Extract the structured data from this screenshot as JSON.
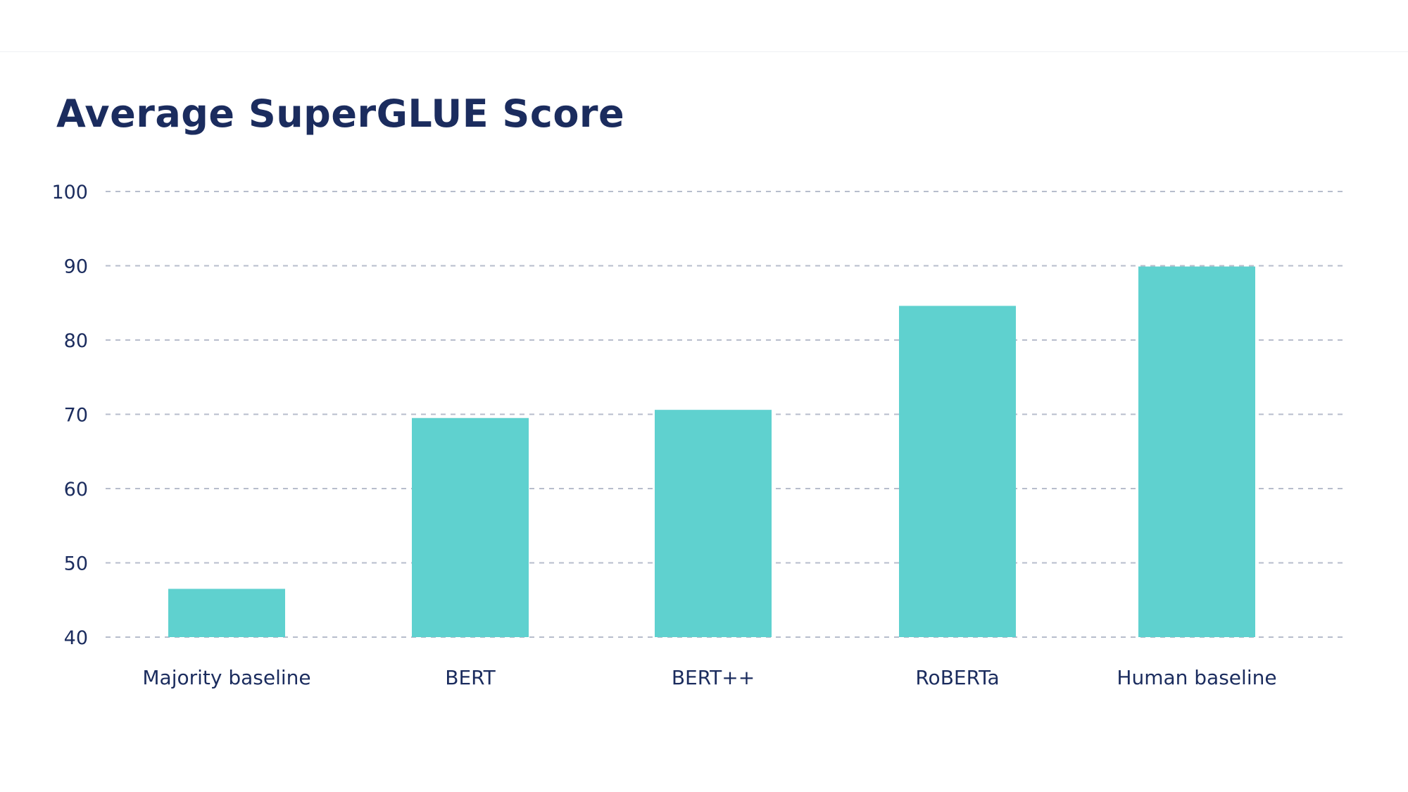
{
  "colors": {
    "bar": "#5fd1cf",
    "text": "#1b2c5e",
    "grid": "#b7bdcc"
  },
  "chart_data": {
    "type": "bar",
    "title": "Average SuperGLUE Score",
    "xlabel": "",
    "ylabel": "",
    "categories": [
      "Majority baseline",
      "BERT",
      "BERT++",
      "RoBERTa",
      "Human baseline"
    ],
    "values": [
      46.5,
      69.5,
      70.6,
      84.6,
      89.9
    ],
    "ylim": [
      40,
      100
    ],
    "yticks": [
      "40",
      "50",
      "60",
      "70",
      "80",
      "90",
      "100"
    ],
    "grid": true,
    "legend": "none"
  }
}
